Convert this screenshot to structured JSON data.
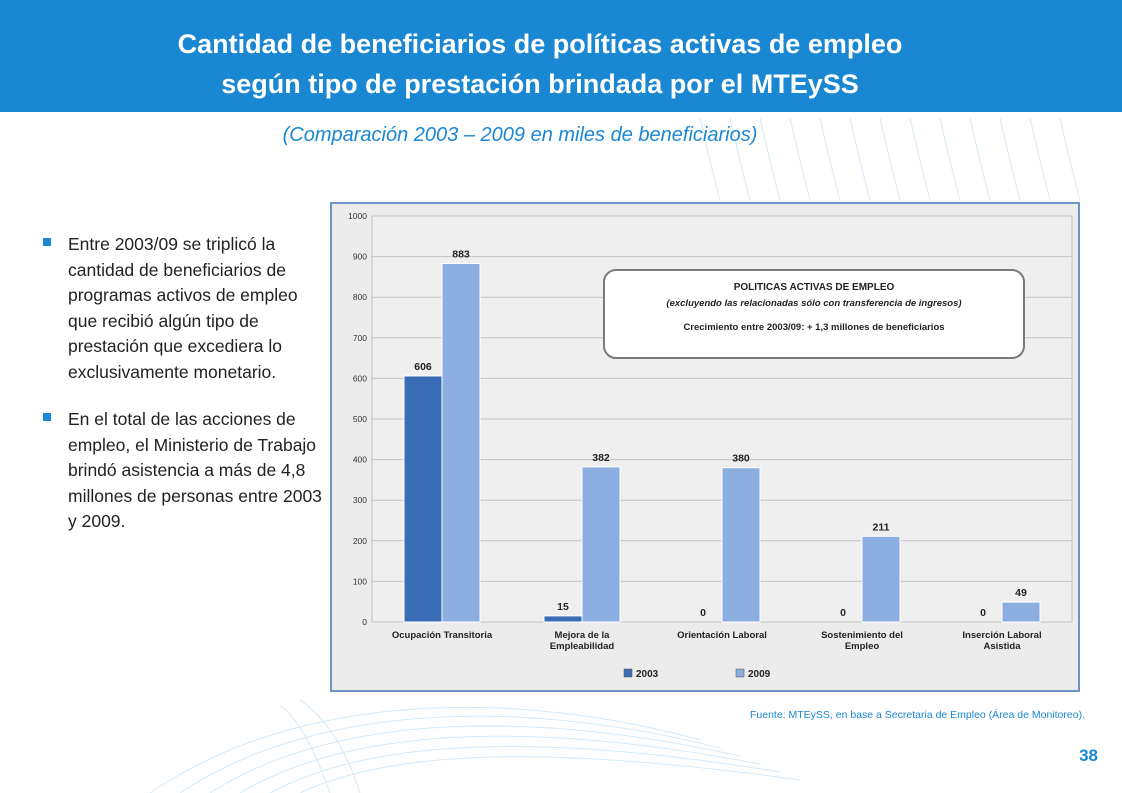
{
  "slide": {
    "title_line1": "Cantidad de beneficiarios de políticas activas de empleo",
    "title_line2": "según tipo de prestación brindada por el MTEySS",
    "subtitle": "(Comparación 2003 – 2009 en miles de beneficiarios)",
    "bullets": [
      "Entre 2003/09 se triplicó la cantidad de beneficiarios de programas activos de empleo que recibió algún tipo de prestación que excediera lo exclusivamente monetario.",
      "En el total de las acciones de empleo, el Ministerio de Trabajo brindó asistencia a más de 4,8 millones de personas entre 2003 y 2009."
    ],
    "source": "Fuente: MTEySS, en base a Secretaria de Empleo (Área de Monitoreo).",
    "page_number": "38",
    "accent_color": "#1a87d3"
  },
  "chart_data": {
    "type": "bar",
    "categories": [
      [
        "Ocupación Transitoria"
      ],
      [
        "Mejora de la",
        "Empleabilidad"
      ],
      [
        "Orientación Laboral"
      ],
      [
        "Sostenimiento del",
        "Empleo"
      ],
      [
        "Inserción Laboral",
        "Asistida"
      ]
    ],
    "series": [
      {
        "name": "2003",
        "values": [
          606,
          15,
          0,
          0,
          0
        ],
        "color": "#3a6db5"
      },
      {
        "name": "2009",
        "values": [
          883,
          382,
          380,
          211,
          49
        ],
        "color": "#8caee0"
      }
    ],
    "ylim": [
      0,
      1000
    ],
    "yticks": [
      0,
      100,
      200,
      300,
      400,
      500,
      600,
      700,
      800,
      900,
      1000
    ],
    "grid": true,
    "legend": "bottom",
    "annotation": {
      "line1": "POLITICAS ACTIVAS DE EMPLEO",
      "line2": "(excluyendo las relacionadas sólo con transferencia de ingresos)",
      "line3": "Crecimiento entre 2003/09:  + 1,3 millones de beneficiarios"
    }
  }
}
